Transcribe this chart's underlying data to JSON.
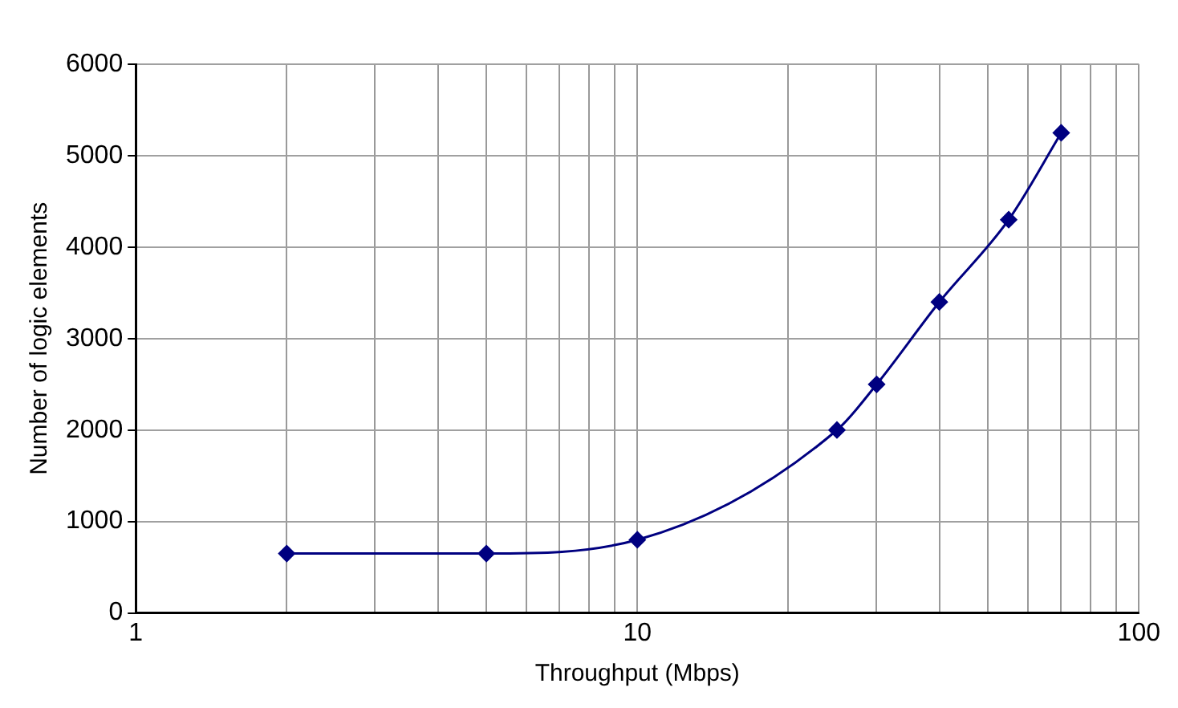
{
  "chart_data": {
    "type": "line",
    "xlabel": "Throughput (Mbps)",
    "ylabel": "Number of logic elements",
    "x": [
      2,
      5,
      10,
      25,
      30,
      40,
      55,
      70
    ],
    "series": [
      {
        "color": "#000080",
        "values": [
          650,
          650,
          800,
          2000,
          2500,
          3400,
          4300,
          5250
        ]
      }
    ],
    "log": "x",
    "xlim": [
      1,
      100
    ],
    "xticks": [
      1,
      {
        "value": 2,
        "label": null
      },
      {
        "value": 3,
        "label": null
      },
      {
        "value": 4,
        "label": null
      },
      {
        "value": 5,
        "label": null
      },
      {
        "value": 6,
        "label": null
      },
      {
        "value": 7,
        "label": null
      },
      {
        "value": 8,
        "label": null
      },
      {
        "value": 9,
        "label": null
      },
      10,
      {
        "value": 20,
        "label": null
      },
      {
        "value": 30,
        "label": null
      },
      {
        "value": 40,
        "label": null
      },
      {
        "value": 50,
        "label": null
      },
      {
        "value": 60,
        "label": null
      },
      {
        "value": 70,
        "label": null
      },
      {
        "value": 80,
        "label": null
      },
      {
        "value": 90,
        "label": null
      },
      100
    ],
    "ylim": [
      0,
      6000
    ],
    "yticks": [
      0,
      1000,
      2000,
      3000,
      4000,
      5000,
      6000
    ],
    "grid": true,
    "legend": false,
    "marker": "diamond",
    "line_style": "solid"
  }
}
